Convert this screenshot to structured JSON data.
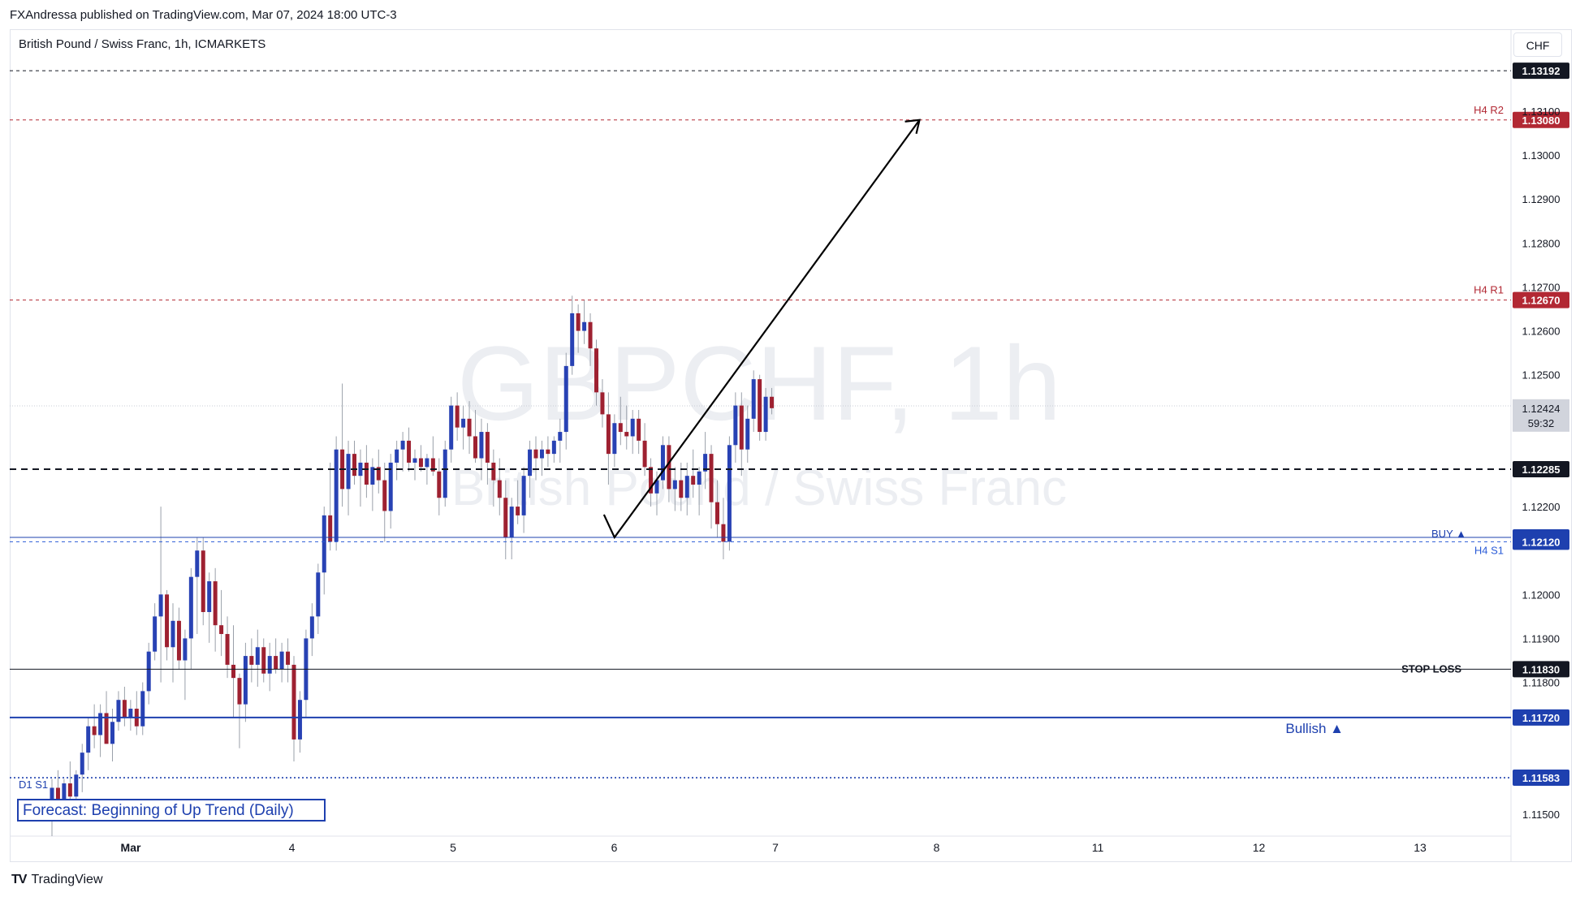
{
  "publisher": "FXAndressa published on TradingView.com, Mar 07, 2024 18:00 UTC-3",
  "symbol_title": "British Pound / Swiss Franc, 1h, ICMARKETS",
  "currency": "CHF",
  "watermark": {
    "ticker": "GBPCHF, 1h",
    "name": "British Pound / Swiss Franc"
  },
  "brand": {
    "mark": "TV",
    "name": "TradingView"
  },
  "colors": {
    "bull": "#2842b4",
    "bear": "#9e2131",
    "red_line": "#e05a6c",
    "blue_line": "#2a5bd7",
    "black": "#131722"
  },
  "chart_data": {
    "type": "candlestick",
    "price_axis": {
      "ylim": [
        1.1145,
        1.1322
      ],
      "ticks": [
        "1.11500",
        "1.11800",
        "1.11900",
        "1.12000",
        "1.12200",
        "1.12500",
        "1.12600",
        "1.12700",
        "1.12800",
        "1.12900",
        "1.13000",
        "1.13100"
      ]
    },
    "time_axis": {
      "ticks": [
        "Mar",
        "4",
        "5",
        "6",
        "7",
        "8",
        "11",
        "12",
        "13"
      ]
    },
    "last_price": {
      "value": "1.12424",
      "countdown": "59:32"
    },
    "levels": [
      {
        "name": "top-line",
        "value": 1.13192,
        "label": "1.13192",
        "tag": "",
        "style": "dashed",
        "color": "#131722"
      },
      {
        "name": "h4-r2",
        "value": 1.1308,
        "label": "1.13080",
        "tag": "H4 R2",
        "style": "dashed",
        "color": "#b22833"
      },
      {
        "name": "h4-r1",
        "value": 1.1267,
        "label": "1.12670",
        "tag": "H4 R1",
        "style": "dashed",
        "color": "#b22833"
      },
      {
        "name": "entry-line",
        "value": 1.12285,
        "label": "1.12285",
        "tag": "",
        "style": "dashed-bold",
        "color": "#131722"
      },
      {
        "name": "buy-line",
        "value": 1.1213,
        "label": "1.12130",
        "tag": "BUY ▲",
        "style": "solid",
        "color": "#1e40af"
      },
      {
        "name": "h4-s1",
        "value": 1.1212,
        "label": "1.12120",
        "tag": "H4 S1",
        "style": "dashed",
        "color": "#2a5bd7"
      },
      {
        "name": "stop-loss",
        "value": 1.1183,
        "label": "1.11830",
        "tag": "STOP LOSS",
        "style": "solid",
        "color": "#131722"
      },
      {
        "name": "bullish",
        "value": 1.1172,
        "label": "1.11720",
        "tag": "Bullish ▲",
        "style": "solid-bold",
        "color": "#1e40af"
      },
      {
        "name": "d1-s1",
        "value": 1.11583,
        "label": "1.11583",
        "tag": "D1 S1",
        "style": "dotted",
        "color": "#1e40af"
      }
    ],
    "annotation": "Forecast: Beginning of Up Trend (Daily)",
    "candles": [
      [
        1.115,
        1.1158,
        1.1145,
        1.1156
      ],
      [
        1.1156,
        1.116,
        1.1151,
        1.1153
      ],
      [
        1.1153,
        1.1158,
        1.115,
        1.1157
      ],
      [
        1.1157,
        1.1162,
        1.1153,
        1.1154
      ],
      [
        1.1154,
        1.116,
        1.1152,
        1.1159
      ],
      [
        1.1159,
        1.1166,
        1.1155,
        1.1164
      ],
      [
        1.1164,
        1.1172,
        1.116,
        1.117
      ],
      [
        1.117,
        1.1175,
        1.1165,
        1.1168
      ],
      [
        1.1168,
        1.1175,
        1.1163,
        1.1173
      ],
      [
        1.1173,
        1.1178,
        1.1166,
        1.1166
      ],
      [
        1.1166,
        1.1174,
        1.1162,
        1.1171
      ],
      [
        1.1171,
        1.1178,
        1.1169,
        1.1176
      ],
      [
        1.1176,
        1.1179,
        1.117,
        1.1172
      ],
      [
        1.1172,
        1.1176,
        1.1169,
        1.1174
      ],
      [
        1.1174,
        1.1178,
        1.1168,
        1.117
      ],
      [
        1.117,
        1.118,
        1.1168,
        1.1178
      ],
      [
        1.1178,
        1.1189,
        1.1175,
        1.1187
      ],
      [
        1.1187,
        1.1198,
        1.1185,
        1.1195
      ],
      [
        1.1195,
        1.122,
        1.118,
        1.12
      ],
      [
        1.12,
        1.1201,
        1.1185,
        1.1188
      ],
      [
        1.1188,
        1.1198,
        1.118,
        1.1194
      ],
      [
        1.1194,
        1.1197,
        1.1183,
        1.1185
      ],
      [
        1.1185,
        1.1192,
        1.1176,
        1.119
      ],
      [
        1.119,
        1.1206,
        1.1183,
        1.1204
      ],
      [
        1.1204,
        1.1213,
        1.1191,
        1.121
      ],
      [
        1.121,
        1.1213,
        1.1193,
        1.1196
      ],
      [
        1.1196,
        1.1205,
        1.1189,
        1.1203
      ],
      [
        1.1203,
        1.1206,
        1.1187,
        1.1193
      ],
      [
        1.1193,
        1.1201,
        1.1186,
        1.1191
      ],
      [
        1.1191,
        1.1195,
        1.1181,
        1.1184
      ],
      [
        1.1184,
        1.1193,
        1.1172,
        1.1181
      ],
      [
        1.1181,
        1.1182,
        1.1165,
        1.1175
      ],
      [
        1.1175,
        1.1189,
        1.1171,
        1.1186
      ],
      [
        1.1186,
        1.119,
        1.118,
        1.1184
      ],
      [
        1.1184,
        1.1192,
        1.1179,
        1.1188
      ],
      [
        1.1188,
        1.119,
        1.118,
        1.1182
      ],
      [
        1.1182,
        1.1189,
        1.1178,
        1.1186
      ],
      [
        1.1186,
        1.119,
        1.1182,
        1.1183
      ],
      [
        1.1183,
        1.1189,
        1.118,
        1.1187
      ],
      [
        1.1187,
        1.119,
        1.118,
        1.1184
      ],
      [
        1.1184,
        1.1186,
        1.1162,
        1.1167
      ],
      [
        1.1167,
        1.1178,
        1.1164,
        1.1176
      ],
      [
        1.1176,
        1.1192,
        1.1172,
        1.119
      ],
      [
        1.119,
        1.1198,
        1.1186,
        1.1195
      ],
      [
        1.1195,
        1.1207,
        1.1191,
        1.1205
      ],
      [
        1.1205,
        1.122,
        1.12,
        1.1218
      ],
      [
        1.1218,
        1.123,
        1.121,
        1.1212
      ],
      [
        1.1212,
        1.1236,
        1.121,
        1.1233
      ],
      [
        1.1233,
        1.1248,
        1.122,
        1.1224
      ],
      [
        1.1224,
        1.1235,
        1.1218,
        1.1232
      ],
      [
        1.1232,
        1.1235,
        1.1225,
        1.1227
      ],
      [
        1.1227,
        1.1233,
        1.122,
        1.123
      ],
      [
        1.123,
        1.1234,
        1.1222,
        1.1225
      ],
      [
        1.1225,
        1.1231,
        1.1219,
        1.1229
      ],
      [
        1.1229,
        1.1233,
        1.1223,
        1.1226
      ],
      [
        1.1226,
        1.123,
        1.1212,
        1.1219
      ],
      [
        1.1219,
        1.1232,
        1.1215,
        1.123
      ],
      [
        1.123,
        1.1235,
        1.1226,
        1.1233
      ],
      [
        1.1233,
        1.1237,
        1.1228,
        1.1235
      ],
      [
        1.1235,
        1.1238,
        1.1228,
        1.123
      ],
      [
        1.123,
        1.1233,
        1.1226,
        1.1231
      ],
      [
        1.1231,
        1.1234,
        1.1228,
        1.1229
      ],
      [
        1.1229,
        1.1232,
        1.1225,
        1.1231
      ],
      [
        1.1231,
        1.1236,
        1.1227,
        1.1228
      ],
      [
        1.1228,
        1.1231,
        1.1218,
        1.1222
      ],
      [
        1.1222,
        1.1235,
        1.122,
        1.1233
      ],
      [
        1.1233,
        1.1245,
        1.123,
        1.1243
      ],
      [
        1.1243,
        1.1246,
        1.1235,
        1.1238
      ],
      [
        1.1238,
        1.1243,
        1.1233,
        1.124
      ],
      [
        1.124,
        1.1244,
        1.1232,
        1.1236
      ],
      [
        1.1236,
        1.1242,
        1.123,
        1.1231
      ],
      [
        1.1231,
        1.124,
        1.1226,
        1.1237
      ],
      [
        1.1237,
        1.1239,
        1.1225,
        1.123
      ],
      [
        1.123,
        1.1233,
        1.122,
        1.1226
      ],
      [
        1.1226,
        1.1231,
        1.1218,
        1.1222
      ],
      [
        1.1222,
        1.1226,
        1.1208,
        1.1213
      ],
      [
        1.1213,
        1.1222,
        1.1208,
        1.122
      ],
      [
        1.122,
        1.1226,
        1.1216,
        1.1218
      ],
      [
        1.1218,
        1.1229,
        1.1214,
        1.1227
      ],
      [
        1.1227,
        1.1235,
        1.1222,
        1.1233
      ],
      [
        1.1233,
        1.1236,
        1.1226,
        1.1231
      ],
      [
        1.1231,
        1.1235,
        1.1227,
        1.1233
      ],
      [
        1.1233,
        1.1236,
        1.1229,
        1.1232
      ],
      [
        1.1232,
        1.1236,
        1.123,
        1.1235
      ],
      [
        1.1235,
        1.124,
        1.123,
        1.1237
      ],
      [
        1.1237,
        1.1255,
        1.1233,
        1.1252
      ],
      [
        1.1252,
        1.1268,
        1.125,
        1.1264
      ],
      [
        1.1264,
        1.1266,
        1.1255,
        1.126
      ],
      [
        1.126,
        1.1267,
        1.1257,
        1.1262
      ],
      [
        1.1262,
        1.1264,
        1.1252,
        1.1256
      ],
      [
        1.1256,
        1.1258,
        1.1243,
        1.1246
      ],
      [
        1.1246,
        1.1249,
        1.1238,
        1.1241
      ],
      [
        1.1241,
        1.1246,
        1.1225,
        1.1232
      ],
      [
        1.1232,
        1.1241,
        1.1229,
        1.1239
      ],
      [
        1.1239,
        1.1245,
        1.1234,
        1.1237
      ],
      [
        1.1237,
        1.1243,
        1.1233,
        1.1236
      ],
      [
        1.1236,
        1.1242,
        1.1232,
        1.124
      ],
      [
        1.124,
        1.1242,
        1.1232,
        1.1235
      ],
      [
        1.1235,
        1.1239,
        1.1227,
        1.1229
      ],
      [
        1.1229,
        1.1231,
        1.122,
        1.1223
      ],
      [
        1.1223,
        1.1228,
        1.1218,
        1.1226
      ],
      [
        1.1226,
        1.1236,
        1.1224,
        1.1234
      ],
      [
        1.1234,
        1.1236,
        1.1221,
        1.1224
      ],
      [
        1.1224,
        1.1229,
        1.1219,
        1.1226
      ],
      [
        1.1226,
        1.123,
        1.1219,
        1.1222
      ],
      [
        1.1222,
        1.123,
        1.1218,
        1.1227
      ],
      [
        1.1227,
        1.1233,
        1.1222,
        1.1225
      ],
      [
        1.1225,
        1.1229,
        1.1218,
        1.1228
      ],
      [
        1.1228,
        1.1237,
        1.1224,
        1.1232
      ],
      [
        1.1232,
        1.1234,
        1.1215,
        1.1221
      ],
      [
        1.1221,
        1.1226,
        1.1213,
        1.1216
      ],
      [
        1.1216,
        1.1222,
        1.1208,
        1.1212
      ],
      [
        1.1212,
        1.1236,
        1.121,
        1.1234
      ],
      [
        1.1234,
        1.1246,
        1.123,
        1.1243
      ],
      [
        1.1243,
        1.1246,
        1.1227,
        1.1233
      ],
      [
        1.1233,
        1.1243,
        1.123,
        1.124
      ],
      [
        1.124,
        1.1251,
        1.1237,
        1.1249
      ],
      [
        1.1249,
        1.125,
        1.1235,
        1.1237
      ],
      [
        1.1237,
        1.1247,
        1.1235,
        1.1245
      ],
      [
        1.1245,
        1.1247,
        1.1241,
        1.12424
      ]
    ]
  }
}
